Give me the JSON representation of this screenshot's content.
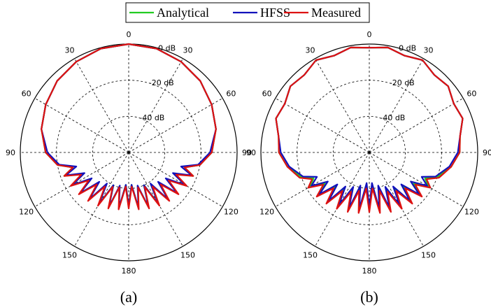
{
  "chart_data": {
    "type": "polar",
    "legend": {
      "position": "top-center",
      "items": [
        {
          "name": "Analytical",
          "color": "#22cc22"
        },
        {
          "name": "HFSS",
          "color": "#1111bb"
        },
        {
          "name": "Measured",
          "color": "#dd1111"
        }
      ]
    },
    "radial_axis": {
      "unit": "dB",
      "tick_labels": [
        "0 dB",
        "-20 dB",
        "-40 dB"
      ],
      "range": [
        -60,
        0
      ],
      "grid": true
    },
    "angle_labels": [
      "0",
      "30",
      "60",
      "90",
      "120",
      "150",
      "180",
      "150",
      "120",
      "90",
      "60",
      "30"
    ],
    "panels": [
      {
        "label": "(a)",
        "series": [
          {
            "name": "Analytical",
            "color": "#22cc22",
            "theta": [
              0,
              15,
              30,
              45,
              60,
              75,
              90,
              100,
              105,
              110,
              115,
              120,
              125,
              130,
              135,
              140,
              145,
              150,
              155,
              160,
              165,
              170,
              175,
              180
            ],
            "r_db": [
              0,
              -0.5,
              -2,
              -4,
              -7,
              -10,
              -14,
              -20,
              -28,
              -22,
              -32,
              -24,
              -34,
              -25,
              -36,
              -26,
              -38,
              -27,
              -40,
              -28,
              -40,
              -29,
              -42,
              -30
            ]
          },
          {
            "name": "HFSS",
            "color": "#1111bb",
            "theta": [
              0,
              15,
              30,
              45,
              60,
              75,
              90,
              100,
              105,
              110,
              115,
              120,
              125,
              130,
              135,
              140,
              145,
              150,
              155,
              160,
              165,
              170,
              175,
              180
            ],
            "r_db": [
              0,
              -0.5,
              -2,
              -4,
              -7,
              -10,
              -15,
              -21,
              -30,
              -23,
              -33,
              -24,
              -35,
              -25,
              -37,
              -26,
              -39,
              -27,
              -40,
              -28,
              -41,
              -29,
              -42,
              -30
            ]
          },
          {
            "name": "Measured",
            "color": "#dd1111",
            "theta": [
              0,
              15,
              30,
              45,
              60,
              75,
              90,
              100,
              105,
              110,
              115,
              120,
              125,
              130,
              135,
              140,
              145,
              150,
              155,
              160,
              165,
              170,
              175,
              180
            ],
            "r_db": [
              0,
              -0.5,
              -2,
              -4,
              -7,
              -10,
              -14,
              -20,
              -28,
              -22,
              -31,
              -23,
              -33,
              -24,
              -35,
              -25,
              -37,
              -26,
              -39,
              -27,
              -40,
              -28,
              -41,
              -29
            ]
          }
        ]
      },
      {
        "label": "(b)",
        "series": [
          {
            "name": "Analytical",
            "color": "#22cc22",
            "theta": [
              0,
              10,
              20,
              30,
              40,
              50,
              60,
              70,
              80,
              90,
              100,
              110,
              115,
              120,
              125,
              130,
              135,
              140,
              145,
              150,
              155,
              160,
              165,
              170,
              175,
              180
            ],
            "r_db": [
              -2,
              -1,
              -3,
              -1,
              -4,
              -3,
              -6,
              -5,
              -9,
              -10,
              -14,
              -20,
              -26,
              -22,
              -30,
              -23,
              -33,
              -24,
              -35,
              -25,
              -38,
              -26,
              -40,
              -27,
              -42,
              -28
            ]
          },
          {
            "name": "HFSS",
            "color": "#1111bb",
            "theta": [
              0,
              10,
              20,
              30,
              40,
              50,
              60,
              70,
              80,
              90,
              100,
              110,
              115,
              120,
              125,
              130,
              135,
              140,
              145,
              150,
              155,
              160,
              165,
              170,
              175,
              180
            ],
            "r_db": [
              -2,
              -1,
              -3,
              -1,
              -4,
              -3,
              -6,
              -5,
              -9,
              -11,
              -15,
              -21,
              -28,
              -23,
              -32,
              -24,
              -35,
              -25,
              -37,
              -26,
              -39,
              -27,
              -41,
              -28,
              -43,
              -29
            ]
          },
          {
            "name": "Measured",
            "color": "#dd1111",
            "theta": [
              0,
              10,
              20,
              30,
              40,
              50,
              60,
              70,
              80,
              90,
              100,
              110,
              115,
              120,
              125,
              130,
              135,
              140,
              145,
              150,
              155,
              160,
              165,
              170,
              175,
              180
            ],
            "r_db": [
              -2,
              -1,
              -3,
              -1,
              -4,
              -3,
              -6,
              -5,
              -9,
              -10,
              -14,
              -19,
              -25,
              -21,
              -29,
              -22,
              -32,
              -23,
              -34,
              -24,
              -36,
              -25,
              -38,
              -26,
              -40,
              -27
            ]
          }
        ]
      }
    ]
  }
}
